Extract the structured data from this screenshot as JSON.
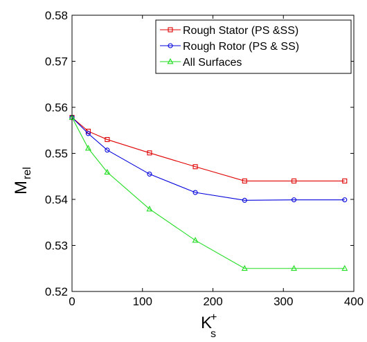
{
  "chart_data": {
    "type": "line",
    "xlabel": "K",
    "xlabel_sub": "s",
    "xlabel_sup": "+",
    "ylabel": "M",
    "ylabel_sub": "rel",
    "xlim": [
      0,
      400
    ],
    "ylim": [
      0.52,
      0.58
    ],
    "xticks": [
      0,
      100,
      200,
      300,
      400
    ],
    "yticks": [
      0.52,
      0.53,
      0.54,
      0.55,
      0.56,
      0.57,
      0.58
    ],
    "xtick_labels": [
      "0",
      "100",
      "200",
      "300",
      "400"
    ],
    "ytick_labels": [
      "0.52",
      "0.53",
      "0.54",
      "0.55",
      "0.56",
      "0.57",
      "0.58"
    ],
    "grid": false,
    "legend_position": "top-right",
    "series": [
      {
        "name": "Rough Stator (PS &SS)",
        "color": "#e00000",
        "marker": "square",
        "x": [
          0,
          23,
          50,
          110,
          175,
          245,
          315,
          387
        ],
        "y": [
          0.5578,
          0.5548,
          0.553,
          0.5501,
          0.5471,
          0.544,
          0.544,
          0.544
        ]
      },
      {
        "name": "Rough Rotor (PS & SS)",
        "color": "#0000dd",
        "marker": "circle",
        "x": [
          0,
          23,
          50,
          110,
          175,
          245,
          315,
          387
        ],
        "y": [
          0.5578,
          0.5543,
          0.5507,
          0.5455,
          0.5415,
          0.5398,
          0.5399,
          0.5399
        ]
      },
      {
        "name": "All Surfaces",
        "color": "#22dd22",
        "marker": "triangle",
        "x": [
          0,
          23,
          50,
          110,
          175,
          245,
          315,
          387
        ],
        "y": [
          0.5578,
          0.5511,
          0.5459,
          0.5379,
          0.5311,
          0.525,
          0.525,
          0.525
        ]
      }
    ]
  }
}
